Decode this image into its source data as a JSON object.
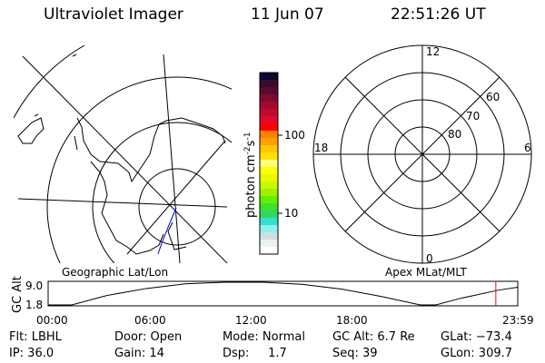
{
  "header": {
    "title": "Ultraviolet Imager",
    "date": "11 Jun 07",
    "time": "22:51:26 UT"
  },
  "colorbar": {
    "label": "photon cm",
    "exp1": "-2",
    "unit2": "s",
    "exp2": "-1",
    "ticks": [
      "100",
      "10"
    ],
    "colors": [
      "#0a0a30",
      "#3a0a2a",
      "#5a0a30",
      "#800a30",
      "#a00a30",
      "#c00a30",
      "#e00a30",
      "#ff0000",
      "#ff8000",
      "#ffa000",
      "#ffc800",
      "#ffe000",
      "#ffff80",
      "#ffff00",
      "#e8f800",
      "#c8f800",
      "#a0f000",
      "#60f000",
      "#40e030",
      "#30d860",
      "#30e0d0",
      "#90f0f0",
      "#d0e0e0",
      "#e8f4f0",
      "#ffffff"
    ]
  },
  "polar": {
    "mlt_labels": [
      "12",
      "6",
      "0",
      "18"
    ],
    "lat_labels": [
      "60",
      "70",
      "80"
    ]
  },
  "left_label": "Geographic Lat/Lon",
  "right_label": "Apex MLat/MLT",
  "chart_data": {
    "type": "line",
    "ylabel": "GC Alt",
    "yticks": [
      "9.0",
      "1.8"
    ],
    "ylim": [
      1.8,
      9.0
    ],
    "xticks": [
      "00:00",
      "06:00",
      "12:00",
      "18:00",
      "23:59"
    ],
    "xlim": [
      0,
      23.98
    ],
    "x": [
      0,
      1.2,
      3,
      5,
      7,
      9,
      11,
      13,
      15,
      17,
      19,
      19.8,
      21,
      23,
      23.98
    ],
    "y": [
      1.8,
      1.8,
      4.8,
      7.0,
      8.5,
      9.0,
      9.0,
      8.3,
      6.8,
      4.5,
      1.8,
      1.8,
      3.8,
      6.5,
      7.4
    ],
    "marker_time": 22.86,
    "line_color": "#000000",
    "marker_color": "#ff0000"
  },
  "info": [
    [
      "Flt: LBHL",
      "IP: 36.0"
    ],
    [
      "Door: Open",
      "Gain: 14"
    ],
    [
      "Mode: Normal",
      "Dsp:     1.7"
    ],
    [
      "GC Alt: 6.7 Re",
      "Seq: 39"
    ],
    [
      "GLat: −73.4",
      "GLon: 309.7"
    ]
  ]
}
